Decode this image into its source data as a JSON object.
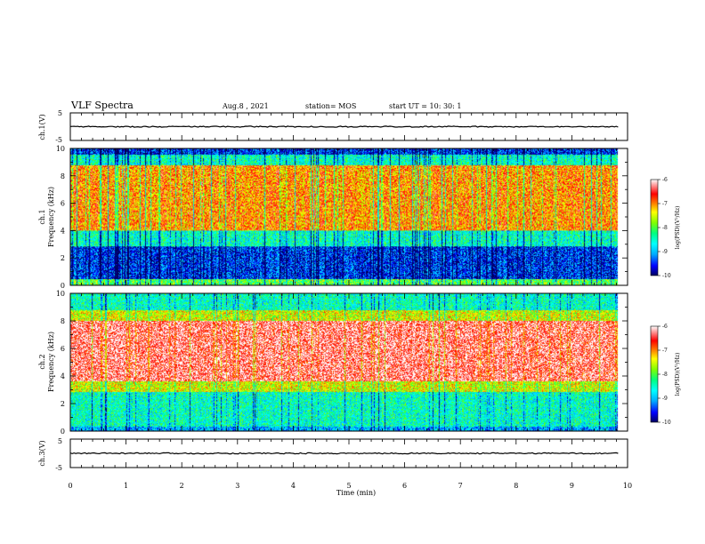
{
  "header": {
    "title": "VLF Spectra",
    "date": "Aug.8 , 2021",
    "station": "station= MOS",
    "start": "start UT = 10: 30: 1"
  },
  "chart_data": [
    {
      "type": "line",
      "title": "",
      "ylabel": "ch.1(V)",
      "xlim": [
        0,
        10
      ],
      "ylim": [
        -5,
        5
      ],
      "yticks": [
        "5",
        "-5"
      ],
      "series": [
        {
          "values_approx": 0
        }
      ]
    },
    {
      "type": "heatmap",
      "ylabel": "ch.1\nFrequency (kHz)",
      "ylabel_line1": "ch.1",
      "ylabel_line2": "Frequency (kHz)",
      "xlim": [
        0,
        10
      ],
      "ylim": [
        0,
        10
      ],
      "yticks": [
        "0",
        "2",
        "4",
        "6",
        "8",
        "10"
      ],
      "bands_khz": [
        {
          "from": 0,
          "to": 0.4,
          "level": "-8"
        },
        {
          "from": 0.4,
          "to": 2.8,
          "level": "-9.5"
        },
        {
          "from": 2.8,
          "to": 4.0,
          "level": "-8.5"
        },
        {
          "from": 4.0,
          "to": 8.8,
          "level": "-7"
        },
        {
          "from": 8.8,
          "to": 9.6,
          "level": "-8.5"
        },
        {
          "from": 9.6,
          "to": 10,
          "level": "-9.5"
        }
      ],
      "colorbar": {
        "label": "log(PSD)(V²/Hz)",
        "ticks": [
          "-6",
          "-7",
          "-8",
          "-9",
          "-10"
        ],
        "range": [
          -10,
          -6
        ]
      }
    },
    {
      "type": "heatmap",
      "ylabel": "ch.2\nFrequency (kHz)",
      "ylabel_line1": "ch.2",
      "ylabel_line2": "Frequency (kHz)",
      "xlim": [
        0,
        10
      ],
      "ylim": [
        0,
        10
      ],
      "yticks": [
        "0",
        "2",
        "4",
        "6",
        "8",
        "10"
      ],
      "bands_khz": [
        {
          "from": 0,
          "to": 0.3,
          "level": "-9"
        },
        {
          "from": 0.3,
          "to": 2.8,
          "level": "-8.5"
        },
        {
          "from": 2.8,
          "to": 3.6,
          "level": "-7.5"
        },
        {
          "from": 3.6,
          "to": 8.0,
          "level": "-6.3"
        },
        {
          "from": 8.0,
          "to": 8.8,
          "level": "-7.5"
        },
        {
          "from": 8.8,
          "to": 10,
          "level": "-8.5"
        }
      ],
      "colorbar": {
        "label": "log(PSD)(V²/Hz)",
        "ticks": [
          "-6",
          "-7",
          "-8",
          "-9",
          "-10"
        ],
        "range": [
          -10,
          -6
        ]
      }
    },
    {
      "type": "line",
      "ylabel": "ch.3(V)",
      "xlim": [
        0,
        10
      ],
      "ylim": [
        -5,
        5
      ],
      "yticks": [
        "5",
        "-5"
      ],
      "xlabel": "Time (min)",
      "xticks": [
        "0",
        "1",
        "2",
        "3",
        "4",
        "5",
        "6",
        "7",
        "8",
        "9",
        "10"
      ],
      "series": [
        {
          "values_approx": 0
        }
      ]
    }
  ],
  "colors": {
    "scale": [
      "#000060",
      "#0000ff",
      "#00aaff",
      "#00ffff",
      "#00ff80",
      "#80ff00",
      "#ffff00",
      "#ff8000",
      "#ff0000",
      "#ffffff"
    ]
  }
}
